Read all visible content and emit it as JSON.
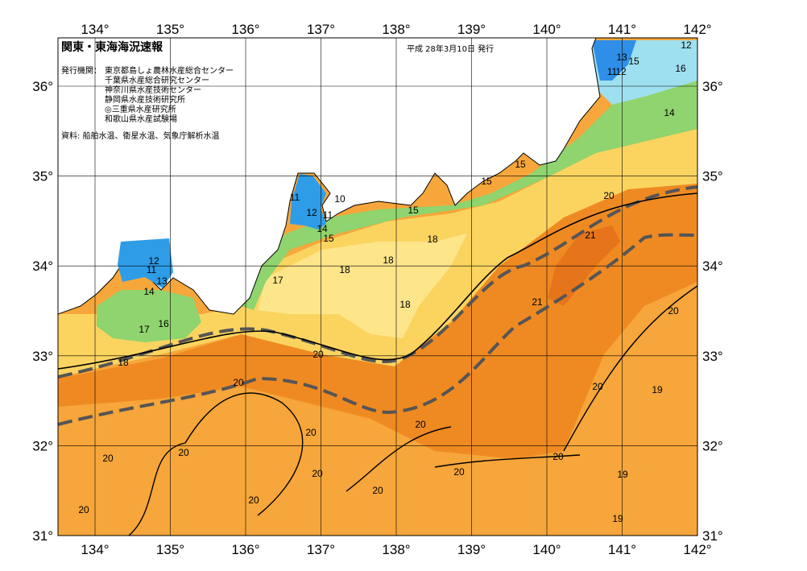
{
  "header": {
    "title": "関東・東海海況速報",
    "issue_date": "平成 28年3月10日 発行",
    "issuer_label": "発行機関：",
    "issuers": [
      "東京都島しょ農林水産総合センター",
      "千葉県水産総合研究センター",
      "神奈川県水産技術センター",
      "静岡県水産技術研究所",
      "◎三重県水産研究所",
      "和歌山県水産試験場"
    ],
    "source": "資料: 船舶水温、衛星水温、気象庁解析水温"
  },
  "map": {
    "longitudes": [
      {
        "value": 134,
        "label": "134°"
      },
      {
        "value": 135,
        "label": "135°"
      },
      {
        "value": 136,
        "label": "136°"
      },
      {
        "value": 137,
        "label": "137°"
      },
      {
        "value": 138,
        "label": "138°"
      },
      {
        "value": 139,
        "label": "139°"
      },
      {
        "value": 140,
        "label": "140°"
      },
      {
        "value": 141,
        "label": "141°"
      },
      {
        "value": 142,
        "label": "142°"
      }
    ],
    "latitudes": [
      {
        "value": 36,
        "label": "36°"
      },
      {
        "value": 35,
        "label": "35°"
      },
      {
        "value": 34,
        "label": "34°"
      },
      {
        "value": 33,
        "label": "33°"
      },
      {
        "value": 32,
        "label": "32°"
      },
      {
        "value": 31,
        "label": "31°"
      }
    ],
    "contour_labels": [
      12,
      13,
      11,
      12,
      15,
      16,
      14,
      15,
      15,
      20,
      21,
      11,
      10,
      12,
      11,
      14,
      15,
      15,
      18,
      18,
      18,
      17,
      18,
      21,
      20,
      12,
      11,
      13,
      14,
      17,
      16,
      18,
      20,
      20,
      20,
      19,
      20,
      20,
      20,
      20,
      20,
      20,
      20,
      19,
      20,
      20,
      20,
      19
    ]
  }
}
